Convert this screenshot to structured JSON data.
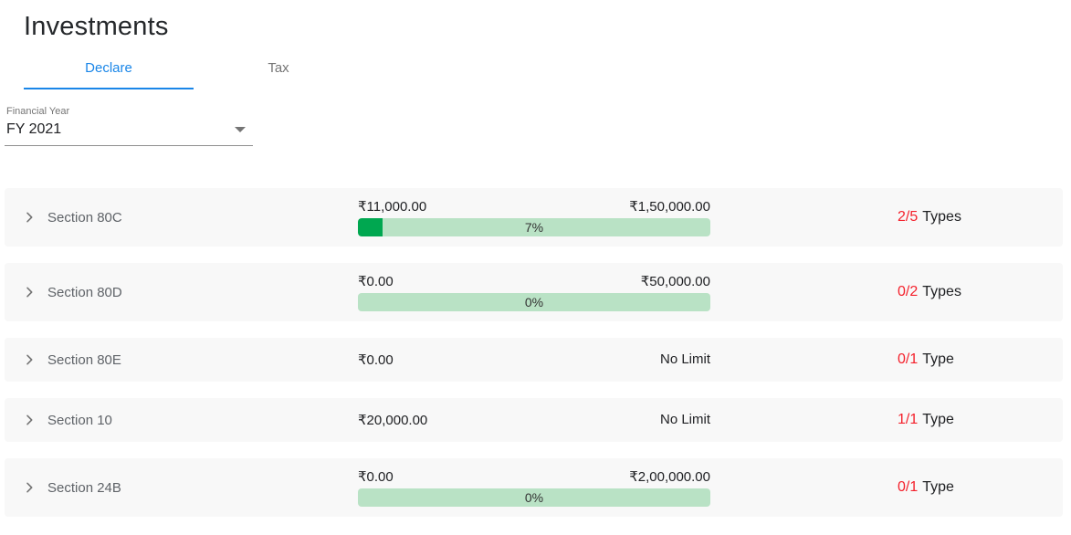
{
  "header": {
    "title": "Investments"
  },
  "tabs": [
    {
      "label": "Declare",
      "active": true
    },
    {
      "label": "Tax",
      "active": false
    }
  ],
  "financial_year": {
    "label": "Financial Year",
    "value": "FY 2021",
    "dropdown_icon": "arrow-drop-down"
  },
  "colors": {
    "accent_blue": "#1a86e8",
    "progress_fill_green": "#00a750",
    "progress_track_green": "#b9e2c5",
    "count_red": "#f4212c"
  },
  "sections": [
    {
      "name": "Section 80C",
      "declared": "₹11,000.00",
      "limit": "₹1,50,000.00",
      "has_bar": true,
      "percent": 7,
      "percent_label": "7%",
      "types_count": "2/5",
      "types_label": "Types"
    },
    {
      "name": "Section 80D",
      "declared": "₹0.00",
      "limit": "₹50,000.00",
      "has_bar": true,
      "percent": 0,
      "percent_label": "0%",
      "types_count": "0/2",
      "types_label": "Types"
    },
    {
      "name": "Section 80E",
      "declared": "₹0.00",
      "limit": "No Limit",
      "has_bar": false,
      "types_count": "0/1",
      "types_label": "Type"
    },
    {
      "name": "Section 10",
      "declared": "₹20,000.00",
      "limit": "No Limit",
      "has_bar": false,
      "types_count": "1/1",
      "types_label": "Type"
    },
    {
      "name": "Section 24B",
      "declared": "₹0.00",
      "limit": "₹2,00,000.00",
      "has_bar": true,
      "percent": 0,
      "percent_label": "0%",
      "types_count": "0/1",
      "types_label": "Type"
    }
  ]
}
